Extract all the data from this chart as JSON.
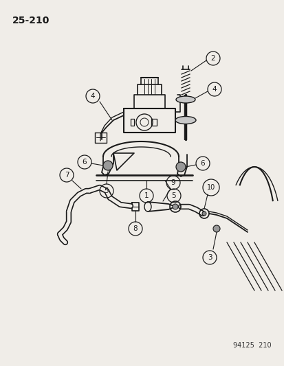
{
  "page_number": "25-210",
  "bg_color": "#f0ede8",
  "line_color": "#1a1a1a",
  "watermark": "94125  210",
  "fig_width": 4.14,
  "fig_height": 5.33,
  "dpi": 100
}
